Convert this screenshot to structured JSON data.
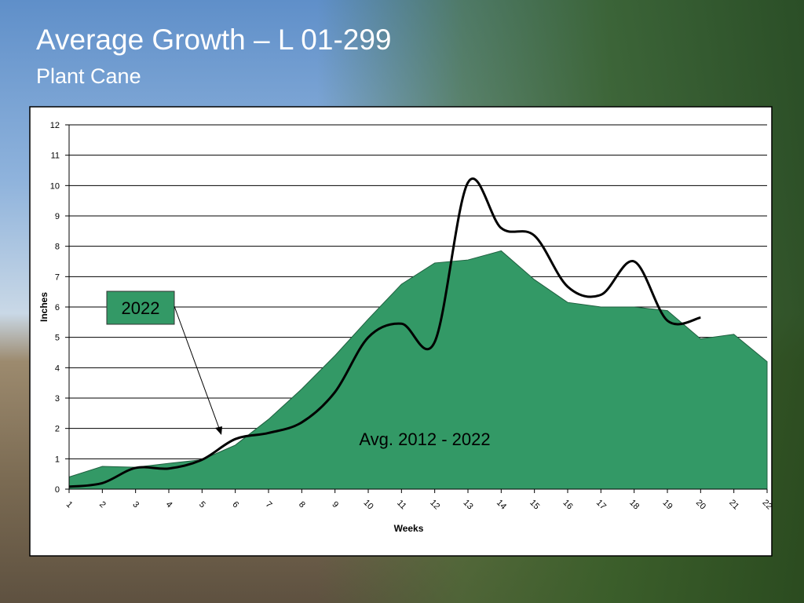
{
  "slide": {
    "title": "Average Growth – L 01-299",
    "subtitle": "Plant Cane"
  },
  "chart_data": {
    "type": "area",
    "ylabel": "Inches",
    "xlabel": "Weeks",
    "x": [
      1,
      2,
      3,
      4,
      5,
      6,
      7,
      8,
      9,
      10,
      11,
      12,
      13,
      14,
      15,
      16,
      17,
      18,
      19,
      20,
      21,
      22
    ],
    "xlim": [
      1,
      22
    ],
    "xticks": [
      1,
      2,
      3,
      4,
      5,
      6,
      7,
      8,
      9,
      10,
      11,
      12,
      13,
      14,
      15,
      16,
      17,
      18,
      19,
      20,
      21,
      22
    ],
    "ylim": [
      0,
      12
    ],
    "yticks": [
      0,
      1,
      2,
      3,
      4,
      5,
      6,
      7,
      8,
      9,
      10,
      11,
      12
    ],
    "grid": true,
    "series": [
      {
        "name": "Avg. 2012 - 2022",
        "type": "area",
        "color": "#339966",
        "values": [
          0.4,
          0.75,
          0.72,
          0.85,
          0.97,
          1.45,
          2.3,
          3.3,
          4.4,
          5.6,
          6.75,
          7.45,
          7.55,
          7.85,
          6.9,
          6.15,
          6.0,
          6.0,
          5.88,
          4.95,
          5.1,
          4.2
        ]
      },
      {
        "name": "2022",
        "type": "line",
        "color": "#000000",
        "values": [
          0.08,
          0.2,
          0.7,
          0.68,
          0.97,
          1.65,
          1.85,
          2.2,
          3.2,
          5.0,
          5.45,
          4.85,
          10.1,
          8.6,
          8.35,
          6.67,
          6.4,
          7.5,
          5.55,
          5.65,
          null,
          null
        ]
      }
    ]
  }
}
